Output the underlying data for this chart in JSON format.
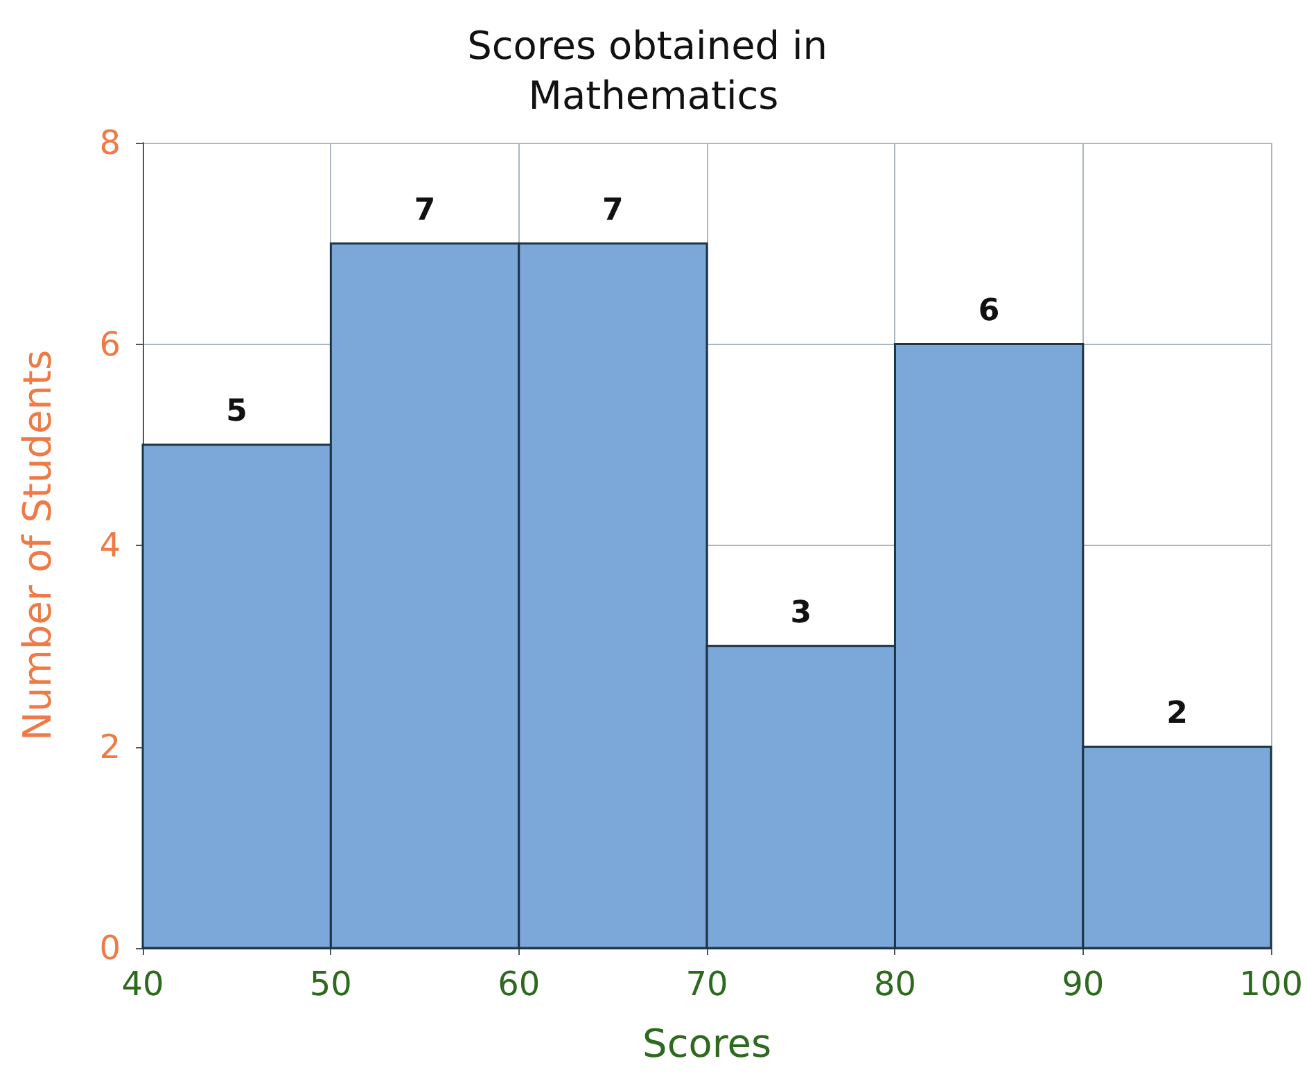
{
  "chart_data": {
    "type": "histogram",
    "title": "Scores obtained in Mathematics",
    "xlabel": "Scores",
    "ylabel": "Number of Students",
    "bins": [
      40,
      50,
      60,
      70,
      80,
      90,
      100
    ],
    "values": [
      5,
      7,
      7,
      3,
      6,
      2
    ],
    "color": "#7ba7d9",
    "xlim": [
      40,
      100
    ],
    "xticks": [
      40,
      50,
      60,
      70,
      80,
      90,
      100
    ],
    "ylim": [
      0,
      8
    ],
    "yticks": [
      0,
      2,
      4,
      6,
      8
    ],
    "grid": true,
    "data_labels": true
  }
}
